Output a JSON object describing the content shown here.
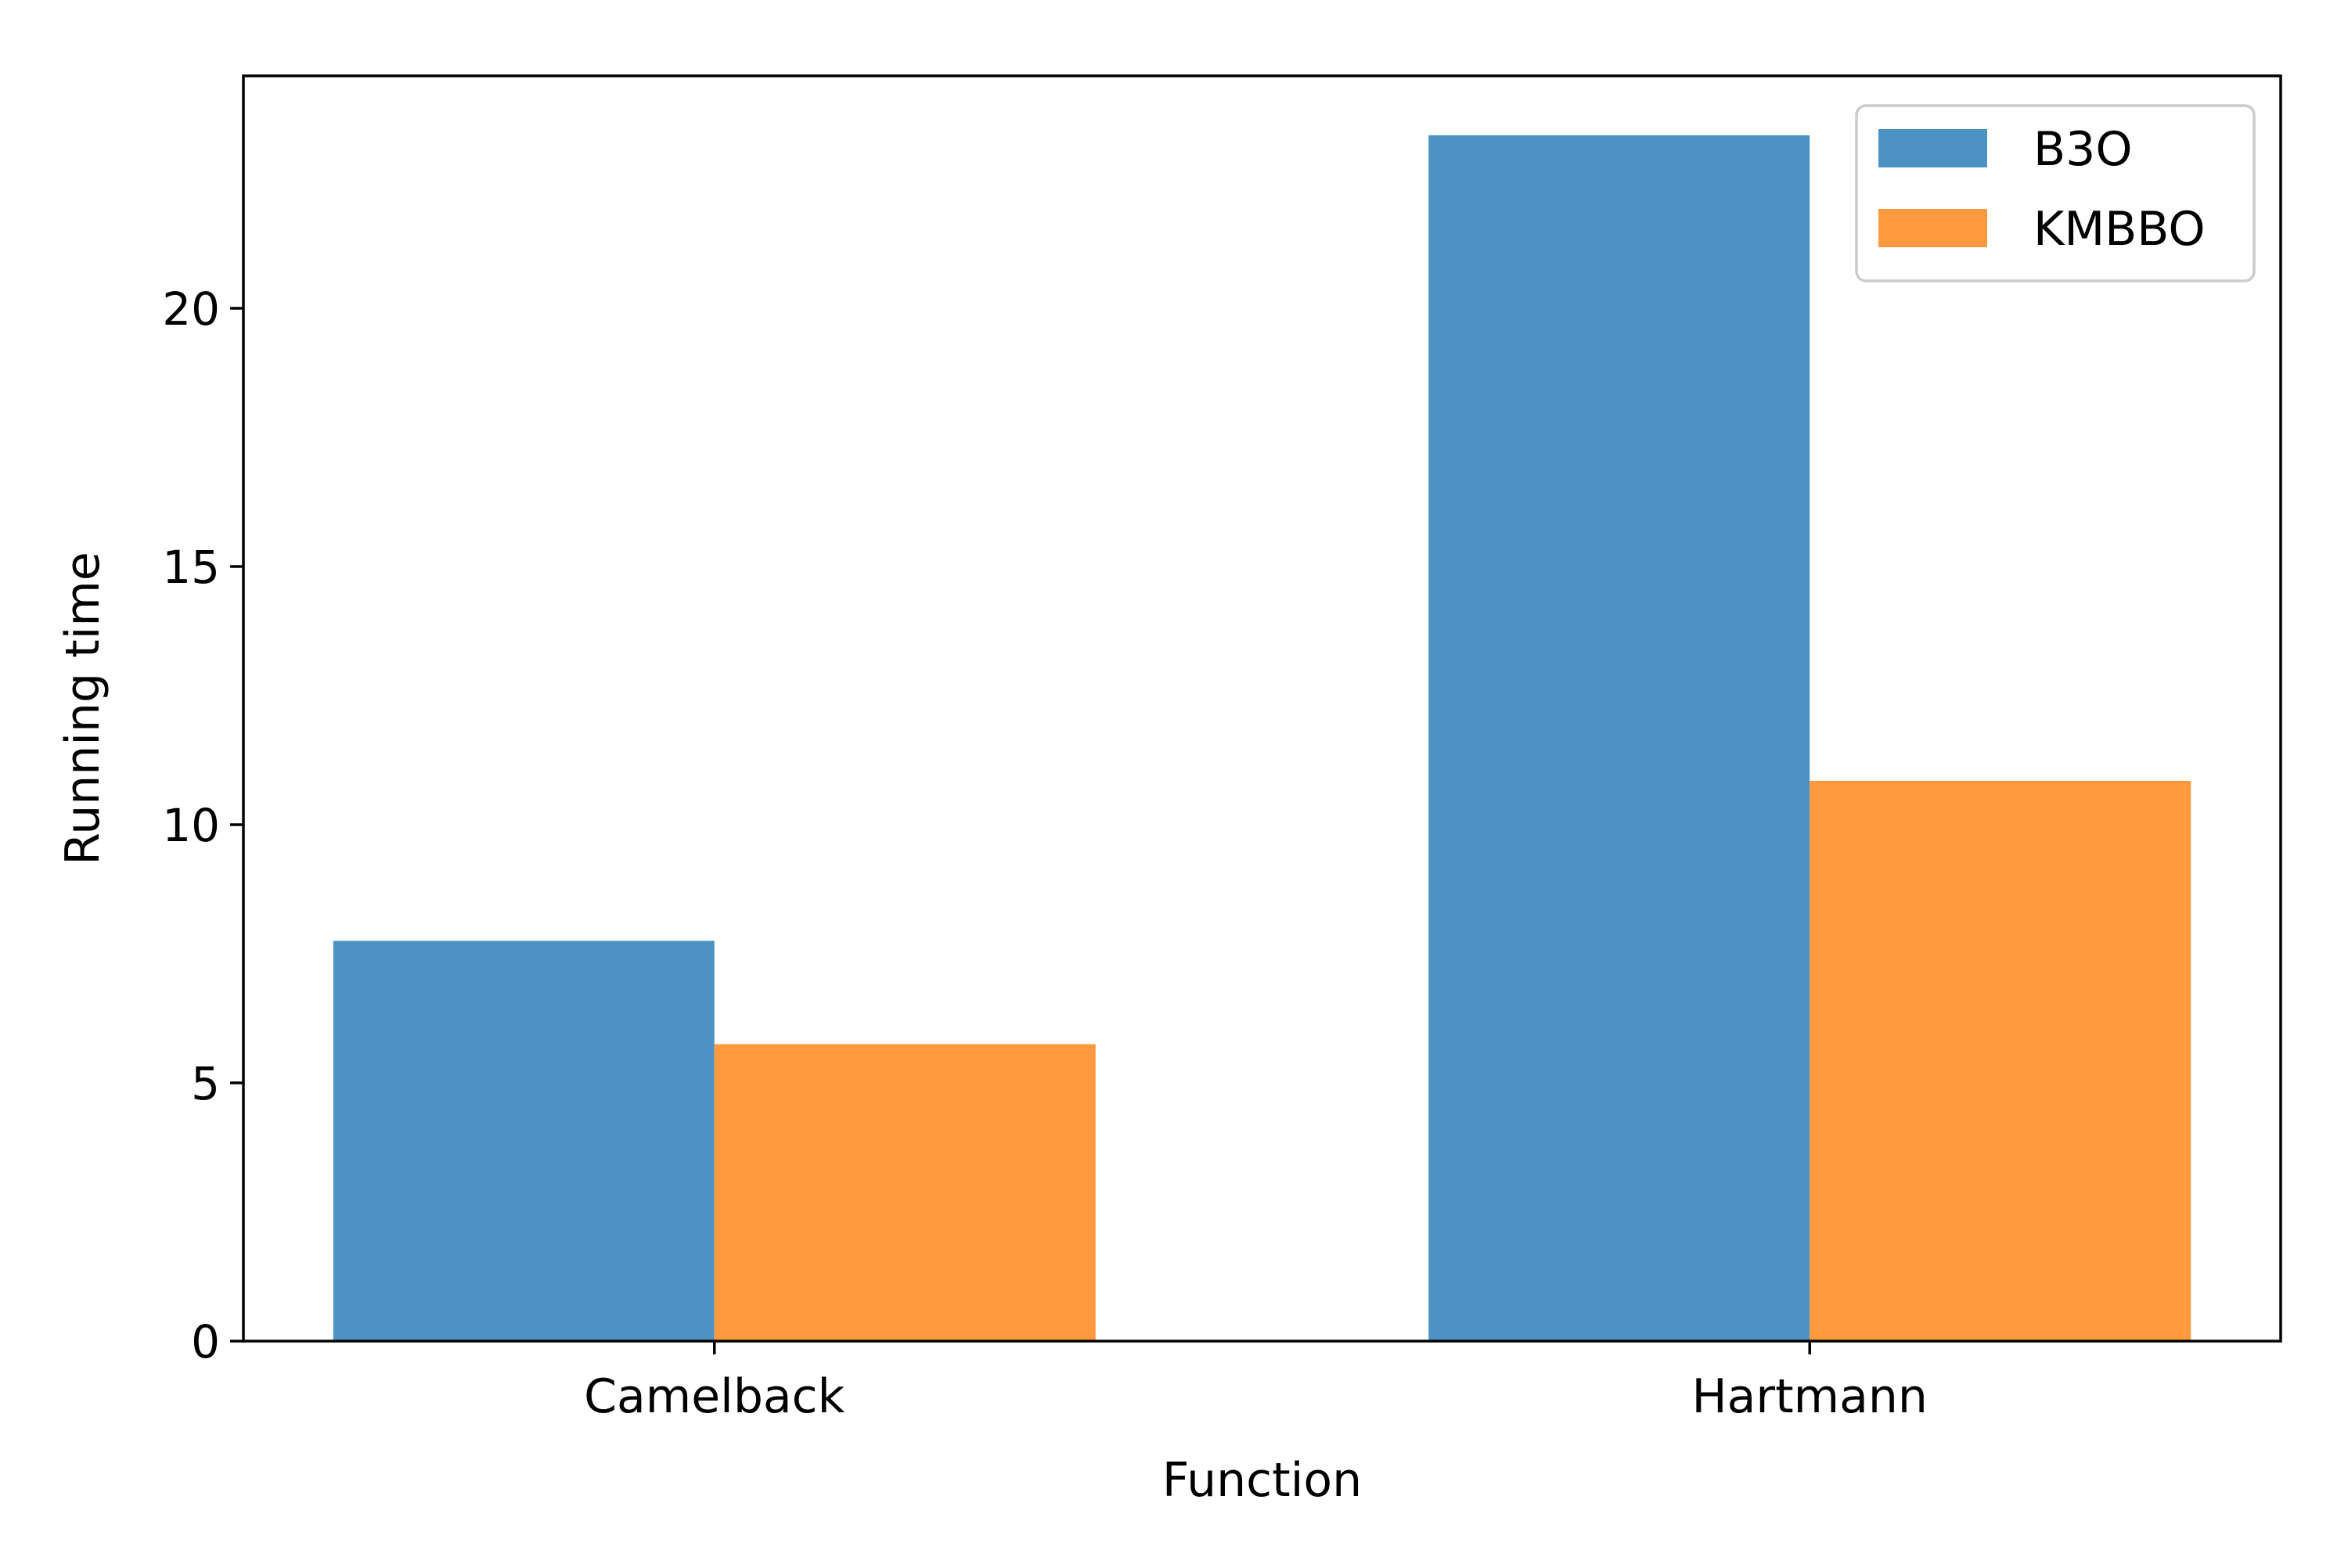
{
  "chart_data": {
    "type": "bar",
    "title": "",
    "xlabel": "Function",
    "ylabel": "Running time",
    "categories": [
      "Camelback",
      "Hartmann"
    ],
    "series": [
      {
        "name": "B3O",
        "values": [
          7.75,
          23.35
        ],
        "color": "#4c92c3"
      },
      {
        "name": "KMBBO",
        "values": [
          5.75,
          10.85
        ],
        "color": "#ff993e"
      }
    ],
    "ylim": [
      0,
      24.5
    ],
    "yticks": [
      0,
      5,
      10,
      15,
      20
    ],
    "grid": false,
    "legend_position": "top-right"
  }
}
